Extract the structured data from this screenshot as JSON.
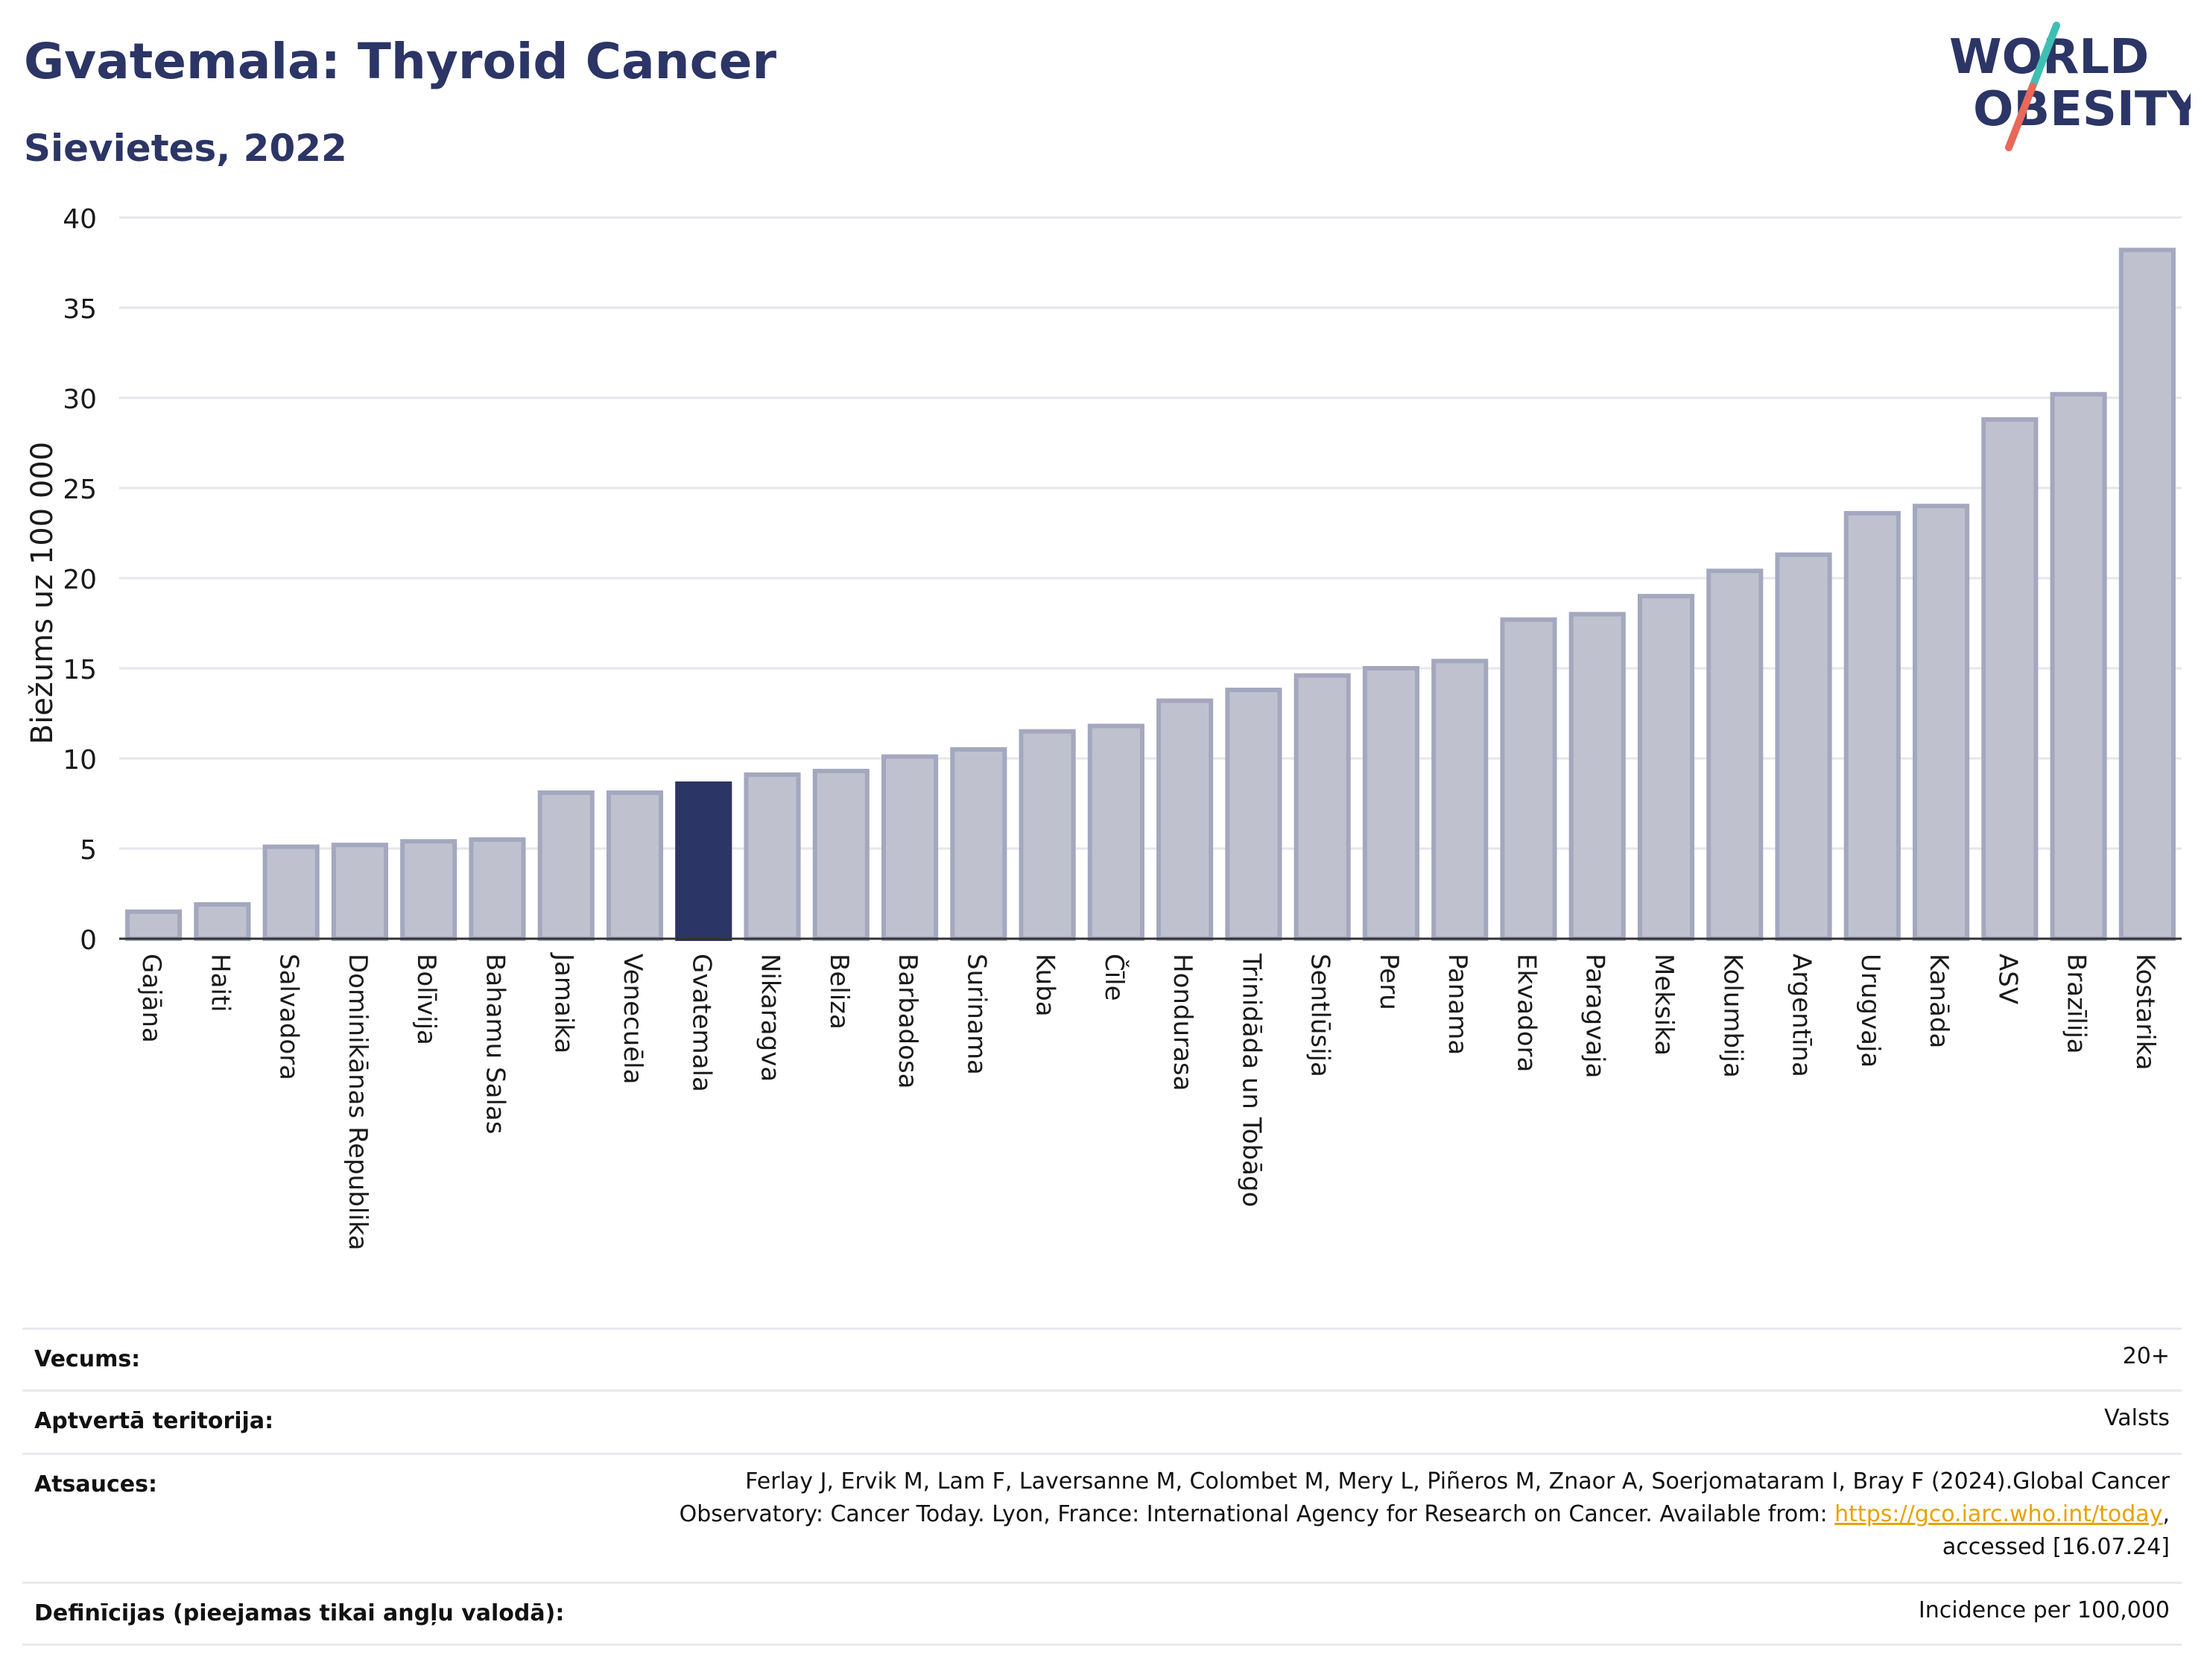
{
  "header": {
    "title": "Gvatemala: Thyroid Cancer",
    "subtitle": "Sievietes, 2022"
  },
  "logo": {
    "line1": "WORLD",
    "line2": "OBESITY",
    "text_color": "#2b3566",
    "slash_colors": [
      "#3fbfb4",
      "#e8685a"
    ]
  },
  "chart_data": {
    "type": "bar",
    "ylabel": "Biežums uz 100 000",
    "ylim": [
      0,
      40
    ],
    "yticks": [
      0,
      5,
      10,
      15,
      20,
      25,
      30,
      35,
      40
    ],
    "grid": true,
    "highlight": "Gvatemala",
    "colors": {
      "bar": "#bfc2ce",
      "bar_edge": "#a3a8bf",
      "highlight": "#2b3566",
      "grid": "#e6e6ec",
      "axis": "#333333"
    },
    "categories": [
      "Gajāna",
      "Haiti",
      "Salvadora",
      "Dominikānas Republika",
      "Bolīvija",
      "Bahamu Salas",
      "Jamaika",
      "Venecuēla",
      "Gvatemala",
      "Nikaragva",
      "Beliza",
      "Barbadosa",
      "Surinama",
      "Kuba",
      "Čīle",
      "Hondurasa",
      "Trinidāda un Tobāgo",
      "Sentlūsija",
      "Peru",
      "Panama",
      "Ekvadora",
      "Paragvaja",
      "Meksika",
      "Kolumbija",
      "Argentīna",
      "Urugvaja",
      "Kanāda",
      "ASV",
      "Brazīlija",
      "Kostarika"
    ],
    "values": [
      1.5,
      1.9,
      5.1,
      5.2,
      5.4,
      5.5,
      8.1,
      8.1,
      8.6,
      9.1,
      9.3,
      10.1,
      10.5,
      11.5,
      11.8,
      13.2,
      13.8,
      14.6,
      15.0,
      15.4,
      17.7,
      18.0,
      19.0,
      20.4,
      21.3,
      23.6,
      24.0,
      28.8,
      30.2,
      38.2
    ]
  },
  "info": {
    "age_label": "Vecums:",
    "age_value": "20+",
    "territory_label": "Aptvertā teritorija:",
    "territory_value": "Valsts",
    "refs_label": "Atsauces:",
    "refs_line1": "Ferlay J, Ervik M, Lam F, Laversanne M, Colombet M, Mery L, Piñeros M, Znaor A, Soerjomataram I, Bray F (2024).Global Cancer",
    "refs_line2_pre": "Observatory: Cancer Today. Lyon, France: International Agency for Research on Cancer. Available from: ",
    "refs_link": "https://gco.iarc.who.int/today",
    "refs_line2_post": ",",
    "refs_line3": "accessed [16.07.24]",
    "defs_label": "Definīcijas (pieejamas tikai angļu valodā):",
    "defs_value": "Incidence per 100,000"
  }
}
